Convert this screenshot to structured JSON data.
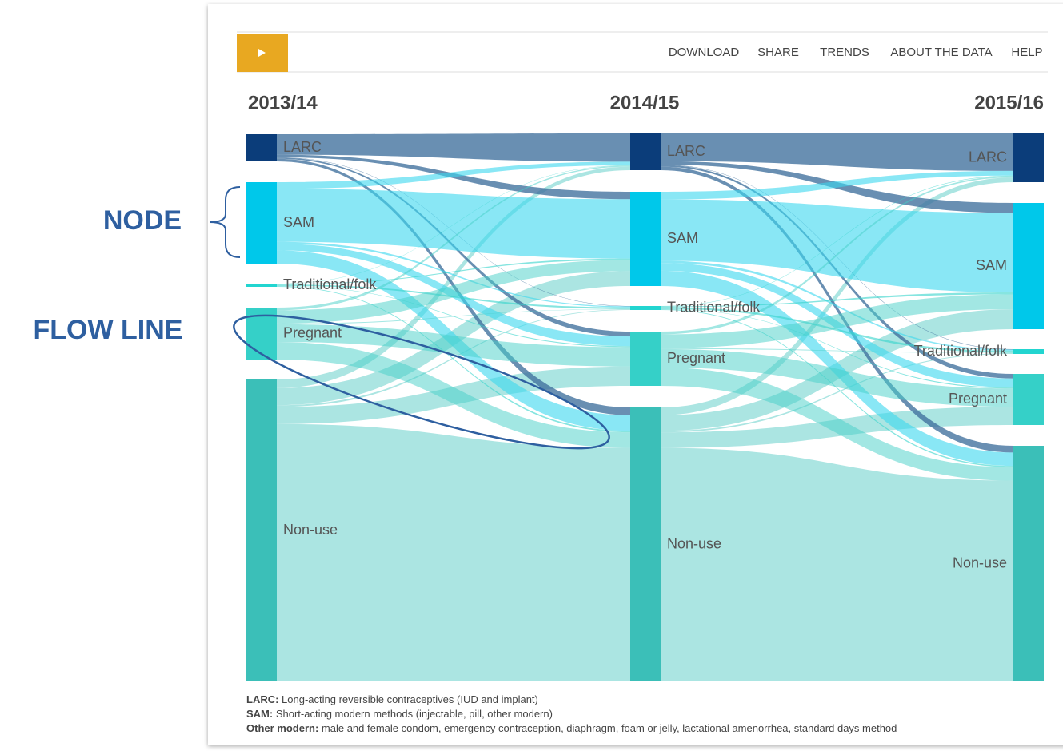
{
  "toolbar": {
    "menu": [
      "DOWNLOAD",
      "SHARE",
      "TRENDS",
      "ABOUT THE DATA",
      "HELP"
    ]
  },
  "columns": [
    {
      "year": "2013/14",
      "nodes": [
        "LARC",
        "SAM",
        "Traditional/folk",
        "Pregnant",
        "Non-use"
      ]
    },
    {
      "year": "2014/15",
      "nodes": [
        "LARC",
        "SAM",
        "Traditional/folk",
        "Pregnant",
        "Non-use"
      ]
    },
    {
      "year": "2015/16",
      "nodes": [
        "LARC",
        "SAM",
        "Traditional/folk",
        "Pregnant",
        "Non-use"
      ]
    }
  ],
  "legend": [
    {
      "term": "LARC:",
      "text": "Long-acting reversible contraceptives (IUD and implant)"
    },
    {
      "term": "SAM:",
      "text": "Short-acting modern methods (injectable, pill, other modern)"
    },
    {
      "term": "Other modern:",
      "text": "male and female condom, emergency contraception, diaphragm, foam or jelly, lactational amenorrhea, standard days method"
    }
  ],
  "annotations": {
    "node": "NODE",
    "flow_line": "FLOW LINE"
  }
}
